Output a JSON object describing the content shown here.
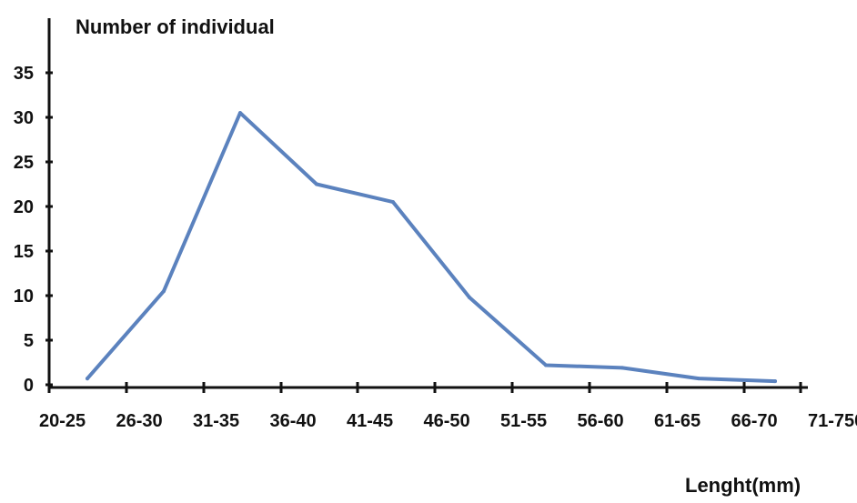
{
  "chart_data": {
    "type": "line",
    "ylabel": "Number of individual",
    "xlabel": "Lenght(mm)",
    "yticks": [
      "0",
      "5",
      "10",
      "15",
      "20",
      "25",
      "30",
      "35"
    ],
    "xticks": [
      "20-25",
      "26-30",
      "31-35",
      "36-40",
      "41-45",
      "46-50",
      "51-55",
      "56-60",
      "61-65",
      "66-70",
      "71-750"
    ],
    "categories": [
      "20-25",
      "26-30",
      "31-35",
      "36-40",
      "41-45",
      "46-50",
      "51-55",
      "56-60",
      "61-65",
      "66-70"
    ],
    "values": [
      0.7,
      10.5,
      30.5,
      22.5,
      20.5,
      9.8,
      2.2,
      1.9,
      0.7,
      0.4
    ],
    "ylim": [
      0,
      35
    ],
    "grid": false,
    "legend": "none",
    "line_color": "#5b82be"
  }
}
